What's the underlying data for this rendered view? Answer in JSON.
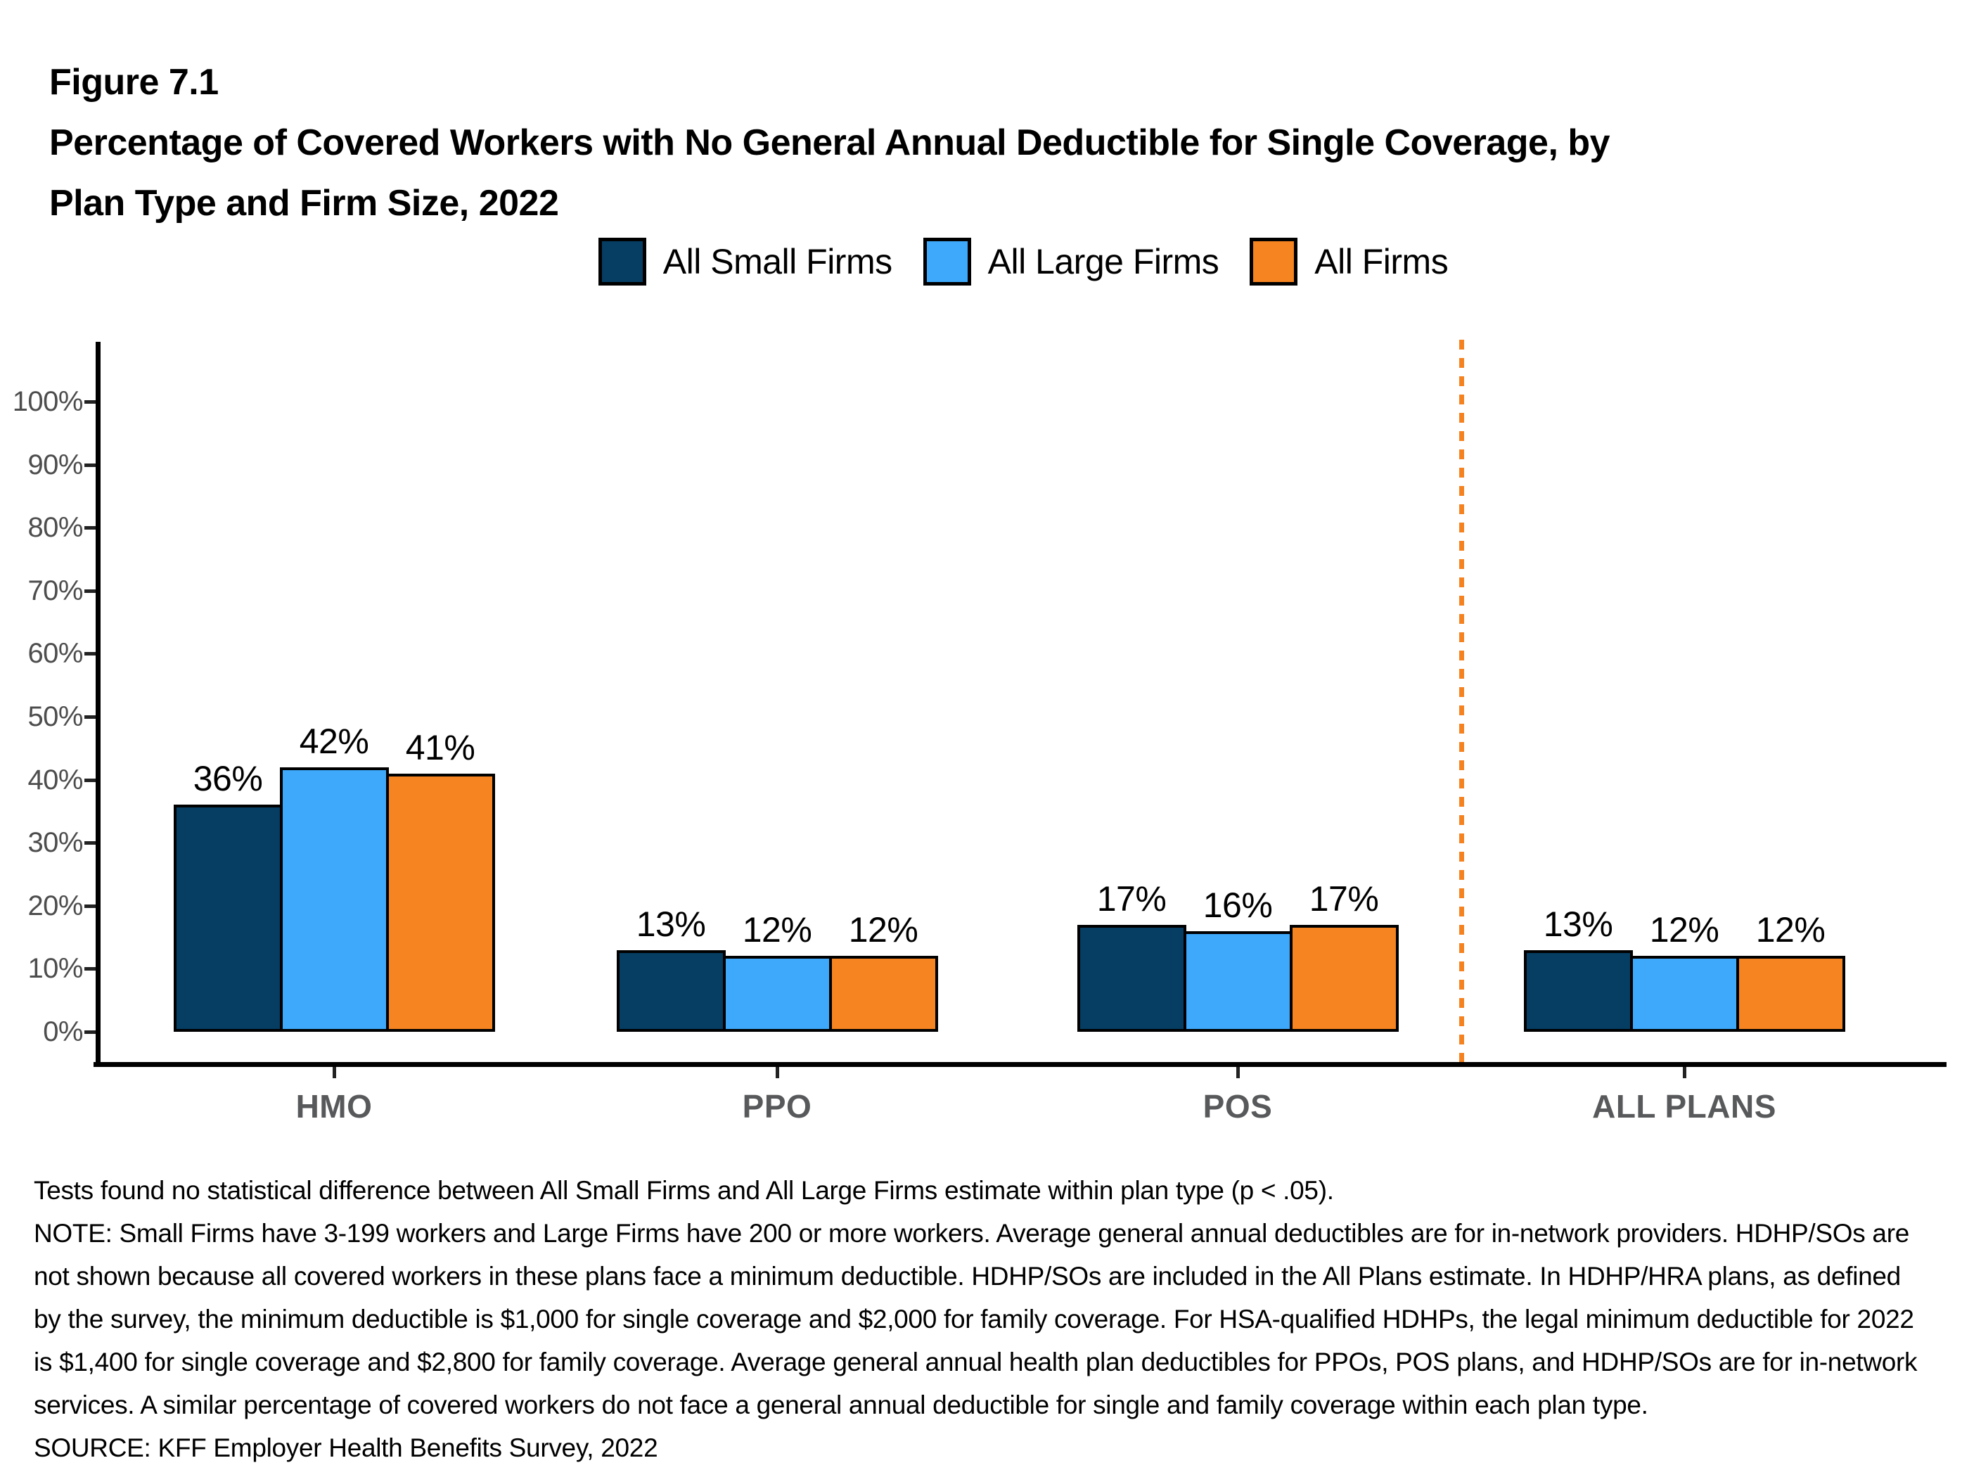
{
  "header": {
    "figure_label": "Figure 7.1",
    "title_lines": [
      "Percentage of Covered Workers with No General Annual Deductible for Single Coverage, by",
      "Plan Type and Firm Size, 2022"
    ]
  },
  "chart_data": {
    "type": "bar",
    "title": "Percentage of Covered Workers with No General Annual Deductible for Single Coverage, by Plan Type and Firm Size, 2022",
    "categories": [
      "HMO",
      "PPO",
      "POS",
      "ALL PLANS"
    ],
    "series": [
      {
        "name": "All Small Firms",
        "color": "#053D63",
        "values": [
          36,
          13,
          17,
          13
        ]
      },
      {
        "name": "All Large Firms",
        "color": "#3EA9FB",
        "values": [
          42,
          12,
          16,
          12
        ]
      },
      {
        "name": "All Firms",
        "color": "#F68420",
        "values": [
          41,
          12,
          17,
          12
        ]
      }
    ],
    "value_label_suffix": "%",
    "xlabel": "",
    "ylabel": "",
    "ylim": [
      0,
      100
    ],
    "y_tick_labels": [
      "0%",
      "10%",
      "20%",
      "30%",
      "40%",
      "50%",
      "60%",
      "70%",
      "80%",
      "90%",
      "100%"
    ],
    "grid": false,
    "legend_position": "top-center",
    "separator": {
      "between": [
        "POS",
        "ALL PLANS"
      ],
      "style": "dashed",
      "color": "#F5821F"
    },
    "style": {
      "bar_border_color": "#000000",
      "axis_color": "#000000",
      "tick_label_color": "#4D4D4D",
      "category_label_color": "#58595B"
    }
  },
  "notes": {
    "stat_note": "Tests found no statistical difference between All Small Firms and All Large Firms estimate within plan type (p < .05).",
    "note": "NOTE: Small Firms have 3-199 workers and Large Firms have 200 or more workers. Average general annual deductibles are for in-network providers. HDHP/SOs are not shown because all covered workers in these plans face a minimum deductible. HDHP/SOs are included in the All Plans estimate. In HDHP/HRA plans, as defined by the survey, the minimum deductible is $1,000 for single coverage and $2,000 for family coverage. For HSA-qualified HDHPs, the legal minimum deductible for 2022 is $1,400 for single coverage and $2,800 for family coverage. Average general annual health plan deductibles for PPOs, POS plans, and HDHP/SOs are for in-network services. A similar percentage of covered workers do not face a general annual deductible for single and family coverage within each plan type.",
    "source": "SOURCE: KFF Employer Health Benefits Survey, 2022"
  }
}
